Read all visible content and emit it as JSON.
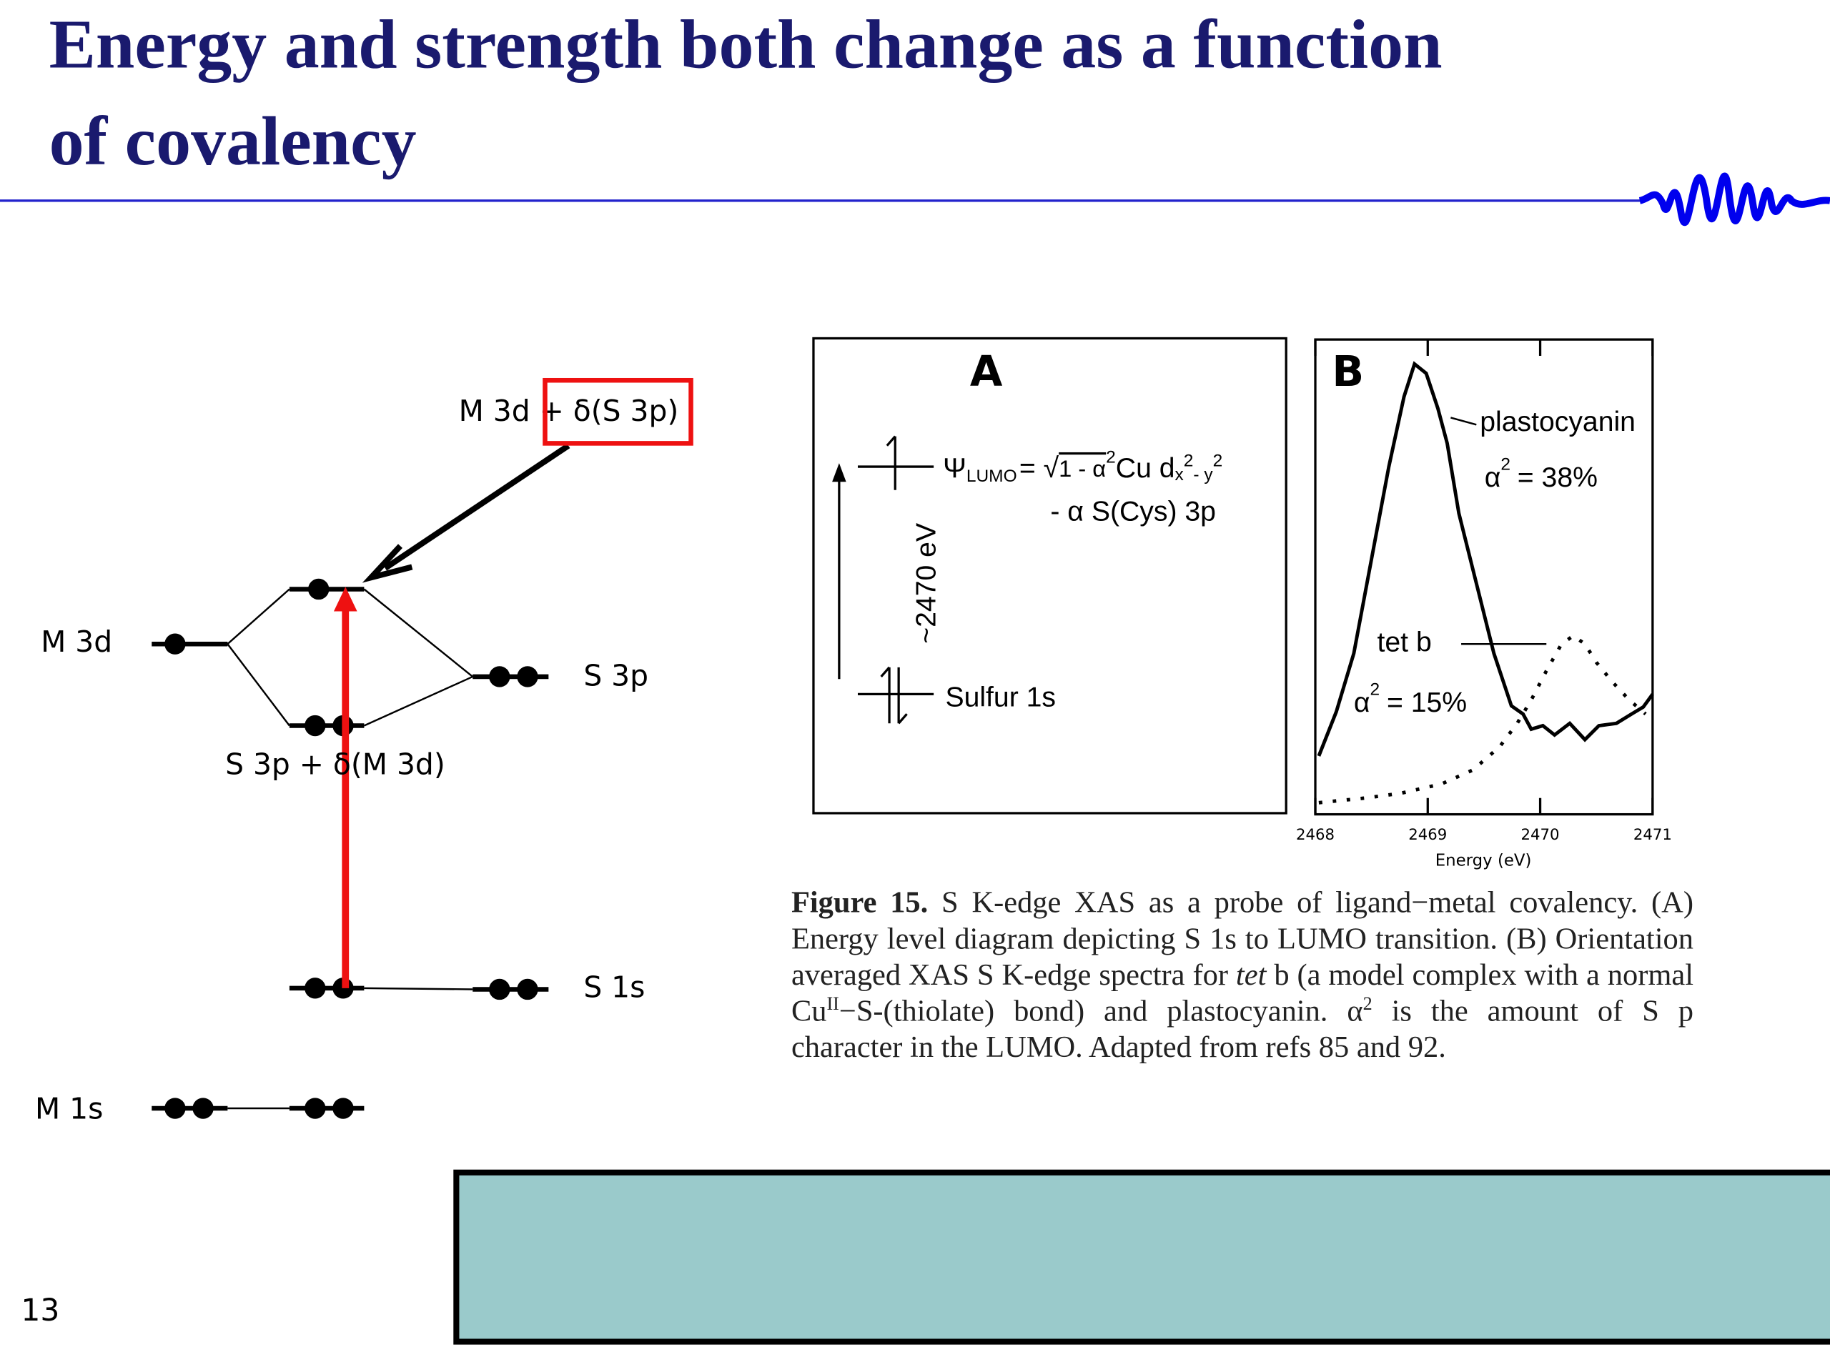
{
  "header": {
    "title_line1": "Energy and strength both change as a function",
    "title_line2": "of covalency"
  },
  "diagram": {
    "m3d": "M 3d",
    "s3p": "S 3p",
    "s1s": "S 1s",
    "m1s": "M 1s",
    "antibonding": "M 3d + δ(S 3p)",
    "bonding": "S 3p + δ(M 3d)"
  },
  "figure": {
    "panel_a": {
      "label": "A",
      "psi": "Ψ",
      "psi_sub": "LUMO",
      "eq": "= √",
      "root": "1 - α",
      "root_sup": "2",
      "cu": "Cu d",
      "d_sub": "x",
      "d_sup1": "2",
      "d_sub2": "- y",
      "d_sup2": "2",
      "line2": "- α S(Cys) 3p",
      "energy": "~2470 eV",
      "level": "Sulfur 1s"
    },
    "panel_b": {
      "label": "B",
      "xlim": [
        2468,
        2471
      ],
      "xticks": [
        2468,
        2469,
        2470,
        2471
      ],
      "xlabel": "Energy (eV)",
      "plastocyanin": "plastocyanin",
      "plasto_alpha": "α",
      "plasto_sup": "2",
      "plasto_value": "= 38%",
      "tetb": "tet b",
      "tetb_alpha": "α",
      "tetb_sup": "2",
      "tetb_value": "= 15%"
    },
    "caption": {
      "bold": "Figure 15.",
      "text1": " S K-edge XAS as a probe of ligand−metal covalency. (A) Energy level diagram depicting S 1s to LUMO transition. (B) Orientation averaged XAS S K-edge spectra for ",
      "italic": "tet",
      "text2": " b (a model complex with a normal Cu",
      "sup1": "II",
      "text3": "−S-(thiolate) bond) and plastocyanin. α",
      "sup2": "2",
      "text4": " is the amount of S p character in the LUMO. Adapted from refs 85 and 92."
    }
  },
  "footer": {
    "page_number": "13"
  }
}
